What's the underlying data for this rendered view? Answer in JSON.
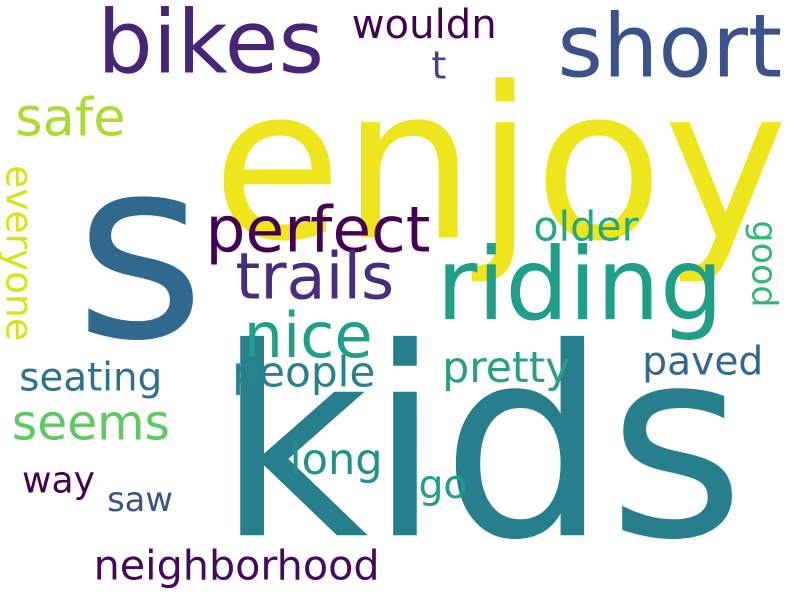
{
  "words": [
    {
      "text": "s",
      "color": "#31688e"
    },
    {
      "text": "enjoy",
      "color": "#efe51c"
    },
    {
      "text": "kids",
      "color": "#277f8e"
    },
    {
      "text": "bikes",
      "color": "#482576"
    },
    {
      "text": "short",
      "color": "#3b528b"
    },
    {
      "text": "riding",
      "color": "#1f9e89"
    },
    {
      "text": "perfect",
      "color": "#440154"
    },
    {
      "text": "trails",
      "color": "#472d7b"
    },
    {
      "text": "nice",
      "color": "#1f9e89"
    },
    {
      "text": "seems",
      "color": "#5ec962"
    },
    {
      "text": "safe",
      "color": "#addc30"
    },
    {
      "text": "everyone",
      "color": "#d8e219"
    },
    {
      "text": "seating",
      "color": "#2c728e"
    },
    {
      "text": "people",
      "color": "#26828e"
    },
    {
      "text": "pretty",
      "color": "#2a9d87"
    },
    {
      "text": "paved",
      "color": "#31688e"
    },
    {
      "text": "wouldn",
      "color": "#440154"
    },
    {
      "text": "t",
      "color": "#414487"
    },
    {
      "text": "older",
      "color": "#22a884"
    },
    {
      "text": "good",
      "color": "#35b779"
    },
    {
      "text": "way",
      "color": "#440154"
    },
    {
      "text": "saw",
      "color": "#3b528b"
    },
    {
      "text": "long",
      "color": "#21918c"
    },
    {
      "text": "go",
      "color": "#1f9e89"
    },
    {
      "text": "neighborhood",
      "color": "#46085c"
    }
  ]
}
